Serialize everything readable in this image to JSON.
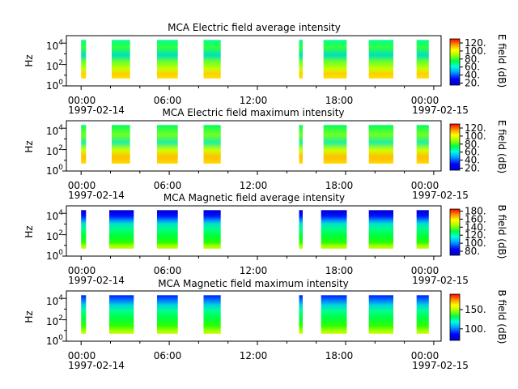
{
  "chart_data": [
    {
      "type": "heatmap",
      "title": "MCA  Electric field average intensity",
      "ylabel": "Hz",
      "x_ticks": [
        "00:00",
        "06:00",
        "12:00",
        "18:00",
        "00:00"
      ],
      "x_dates": [
        "1997-02-14",
        "1997-02-15"
      ],
      "xlim": [
        "1997-02-13 23:00",
        "1997-02-15 00:30"
      ],
      "ylim": [
        1,
        50000
      ],
      "yscale": "log",
      "y_ticks": [
        "10",
        "10",
        "10"
      ],
      "y_exps": [
        "0",
        "2",
        "4"
      ],
      "colorbar": {
        "label": "E field (dB)",
        "range": [
          15,
          130
        ],
        "ticks": [
          "20.",
          "40.",
          "60.",
          "80.",
          "100.",
          "120."
        ]
      },
      "segments": [
        {
          "start": "1997-02-14 00:00",
          "end": "1997-02-14 00:20"
        },
        {
          "start": "1997-02-14 02:05",
          "end": "1997-02-14 03:20"
        },
        {
          "start": "1997-02-14 05:10",
          "end": "1997-02-14 06:35"
        },
        {
          "start": "1997-02-14 08:20",
          "end": "1997-02-14 09:30"
        },
        {
          "start": "1997-02-14 14:50",
          "end": "1997-02-14 15:05"
        },
        {
          "start": "1997-02-14 16:30",
          "end": "1997-02-14 18:05"
        },
        {
          "start": "1997-02-14 19:35",
          "end": "1997-02-14 21:15"
        },
        {
          "start": "1997-02-14 22:50",
          "end": "1997-02-14 23:40"
        }
      ]
    },
    {
      "type": "heatmap",
      "title": "MCA  Electric field maximum intensity",
      "ylabel": "Hz",
      "x_ticks": [
        "00:00",
        "06:00",
        "12:00",
        "18:00",
        "00:00"
      ],
      "x_dates": [
        "1997-02-14",
        "1997-02-15"
      ],
      "xlim": [
        "1997-02-13 23:00",
        "1997-02-15 00:30"
      ],
      "ylim": [
        1,
        50000
      ],
      "yscale": "log",
      "y_ticks": [
        "10",
        "10",
        "10"
      ],
      "y_exps": [
        "0",
        "2",
        "4"
      ],
      "colorbar": {
        "label": "E field (dB)",
        "range": [
          15,
          130
        ],
        "ticks": [
          "20.",
          "40.",
          "60.",
          "80.",
          "100.",
          "120."
        ]
      },
      "segments": [
        {
          "start": "1997-02-14 00:00",
          "end": "1997-02-14 00:20"
        },
        {
          "start": "1997-02-14 02:05",
          "end": "1997-02-14 03:20"
        },
        {
          "start": "1997-02-14 05:10",
          "end": "1997-02-14 06:35"
        },
        {
          "start": "1997-02-14 08:20",
          "end": "1997-02-14 09:30"
        },
        {
          "start": "1997-02-14 14:50",
          "end": "1997-02-14 15:05"
        },
        {
          "start": "1997-02-14 16:30",
          "end": "1997-02-14 18:05"
        },
        {
          "start": "1997-02-14 19:35",
          "end": "1997-02-14 21:15"
        },
        {
          "start": "1997-02-14 22:50",
          "end": "1997-02-14 23:40"
        }
      ]
    },
    {
      "type": "heatmap",
      "title": "MCA  Magnetic field average intensity",
      "ylabel": "Hz",
      "x_ticks": [
        "00:00",
        "06:00",
        "12:00",
        "18:00",
        "00:00"
      ],
      "x_dates": [
        "1997-02-14",
        "1997-02-15"
      ],
      "xlim": [
        "1997-02-13 23:00",
        "1997-02-15 00:30"
      ],
      "ylim": [
        1,
        50000
      ],
      "yscale": "log",
      "y_ticks": [
        "10",
        "10",
        "10"
      ],
      "y_exps": [
        "0",
        "2",
        "4"
      ],
      "colorbar": {
        "label": "B field (dB)",
        "range": [
          70,
          185
        ],
        "ticks": [
          "80.",
          "100.",
          "120.",
          "140.",
          "160.",
          "180."
        ]
      },
      "segments": [
        {
          "start": "1997-02-14 00:00",
          "end": "1997-02-14 00:20"
        },
        {
          "start": "1997-02-14 01:55",
          "end": "1997-02-14 03:35"
        },
        {
          "start": "1997-02-14 05:10",
          "end": "1997-02-14 06:35"
        },
        {
          "start": "1997-02-14 08:20",
          "end": "1997-02-14 09:30"
        },
        {
          "start": "1997-02-14 14:50",
          "end": "1997-02-14 15:05"
        },
        {
          "start": "1997-02-14 16:20",
          "end": "1997-02-14 18:05"
        },
        {
          "start": "1997-02-14 19:35",
          "end": "1997-02-14 21:15"
        },
        {
          "start": "1997-02-14 22:50",
          "end": "1997-02-14 23:40"
        }
      ]
    },
    {
      "type": "heatmap",
      "title": "MCA  Magnetic field maximum intensity",
      "ylabel": "Hz",
      "x_ticks": [
        "00:00",
        "06:00",
        "12:00",
        "18:00",
        "00:00"
      ],
      "x_dates": [
        "1997-02-14",
        "1997-02-15"
      ],
      "xlim": [
        "1997-02-13 23:00",
        "1997-02-15 00:30"
      ],
      "ylim": [
        1,
        50000
      ],
      "yscale": "log",
      "y_ticks": [
        "10",
        "10",
        "10"
      ],
      "y_exps": [
        "0",
        "2",
        "4"
      ],
      "colorbar": {
        "label": "B field (dB)",
        "range": [
          70,
          190
        ],
        "ticks": [
          "100.",
          "150."
        ]
      },
      "segments": [
        {
          "start": "1997-02-14 00:00",
          "end": "1997-02-14 00:20"
        },
        {
          "start": "1997-02-14 01:55",
          "end": "1997-02-14 03:35"
        },
        {
          "start": "1997-02-14 05:10",
          "end": "1997-02-14 06:35"
        },
        {
          "start": "1997-02-14 08:20",
          "end": "1997-02-14 09:30"
        },
        {
          "start": "1997-02-14 14:50",
          "end": "1997-02-14 15:05"
        },
        {
          "start": "1997-02-14 16:20",
          "end": "1997-02-14 18:05"
        },
        {
          "start": "1997-02-14 19:35",
          "end": "1997-02-14 21:15"
        },
        {
          "start": "1997-02-14 22:50",
          "end": "1997-02-14 23:40"
        }
      ]
    }
  ]
}
